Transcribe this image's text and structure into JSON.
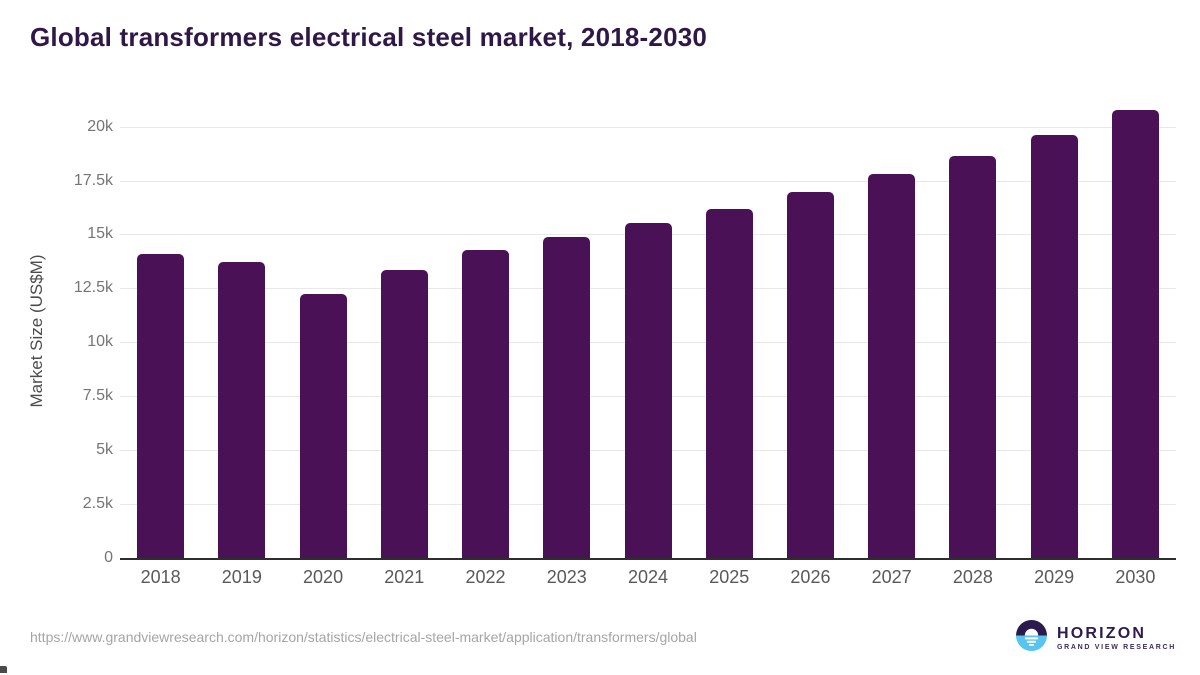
{
  "chart_data": {
    "type": "bar",
    "title": "Global transformers electrical steel market, 2018-2030",
    "categories": [
      "2018",
      "2019",
      "2020",
      "2021",
      "2022",
      "2023",
      "2024",
      "2025",
      "2026",
      "2027",
      "2028",
      "2029",
      "2030"
    ],
    "values": [
      14100,
      13700,
      12250,
      13350,
      14300,
      14900,
      15550,
      16200,
      16950,
      17800,
      18650,
      19600,
      20750
    ],
    "xlabel": "",
    "ylabel": "Market Size (US$M)",
    "ylim": [
      0,
      21000
    ],
    "yticks": {
      "values": [
        0,
        2500,
        5000,
        7500,
        10000,
        12500,
        15000,
        17500,
        20000
      ],
      "labels": [
        "0",
        "2.5k",
        "5k",
        "7.5k",
        "10k",
        "12.5k",
        "15k",
        "17.5k",
        "20k"
      ]
    },
    "grid": true,
    "legend": "none",
    "bar_color": "#4a1157"
  },
  "footer": {
    "source_url": "https://www.grandviewresearch.com/horizon/statistics/electrical-steel-market/application/transformers/global",
    "brand": "HORIZON",
    "brand_subtitle": "GRAND VIEW RESEARCH"
  },
  "colors": {
    "title_text": "#2f1747",
    "bar_fill": "#4a1157",
    "axis_line": "#2e2e2e",
    "gridline": "#e8e8e8",
    "tick_text": "#757575",
    "x_label_text": "#595959",
    "url_text": "#a5a5a5",
    "logo_purple": "#2b1b4d",
    "logo_blue": "#58c5f0"
  }
}
